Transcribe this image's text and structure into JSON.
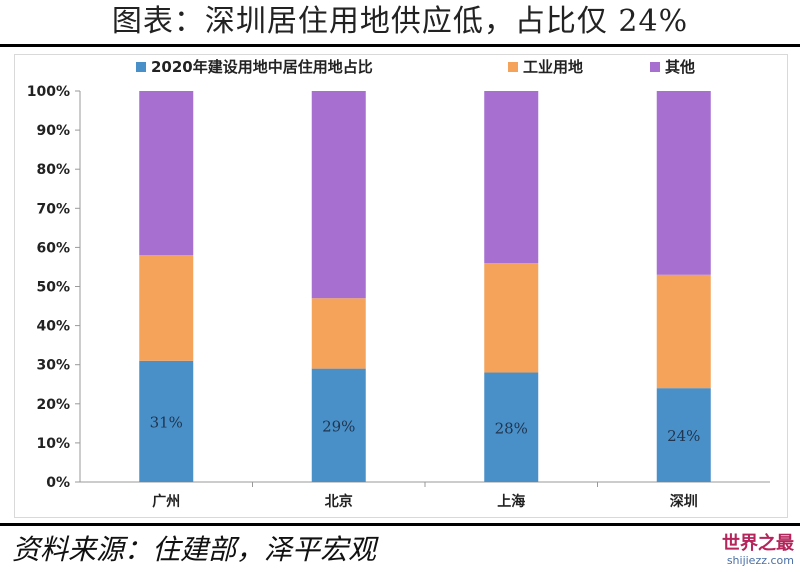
{
  "header": {
    "title": "图表：深圳居住用地供应低，占比仅 24%"
  },
  "footer": {
    "source": "资料来源：住建部，泽平宏观"
  },
  "watermark": {
    "main": "世界之最",
    "sub": "shijiezz.com"
  },
  "colors": {
    "residential": "#4a90c8",
    "industrial": "#f5a35a",
    "other": "#a76fd0",
    "axis": "#999999",
    "text": "#222222"
  },
  "chart_data": {
    "type": "bar",
    "stacked": true,
    "categories": [
      "广州",
      "北京",
      "上海",
      "深圳"
    ],
    "series": [
      {
        "name": "2020年建设用地中居住用地占比",
        "values": [
          31,
          29,
          28,
          24
        ]
      },
      {
        "name": "工业用地",
        "values": [
          27,
          18,
          28,
          29
        ]
      },
      {
        "name": "其他",
        "values": [
          42,
          53,
          44,
          47
        ]
      }
    ],
    "data_labels": [
      "31%",
      "29%",
      "28%",
      "24%"
    ],
    "y_ticks": [
      "0%",
      "10%",
      "20%",
      "30%",
      "40%",
      "50%",
      "60%",
      "70%",
      "80%",
      "90%",
      "100%"
    ],
    "ylim": [
      0,
      100
    ],
    "grid": false,
    "legend_position": "top"
  }
}
